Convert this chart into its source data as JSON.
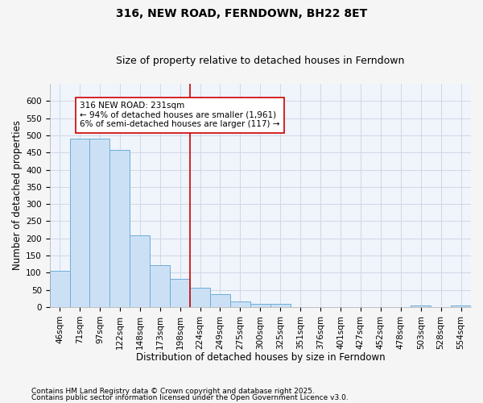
{
  "title": "316, NEW ROAD, FERNDOWN, BH22 8ET",
  "subtitle": "Size of property relative to detached houses in Ferndown",
  "xlabel": "Distribution of detached houses by size in Ferndown",
  "ylabel": "Number of detached properties",
  "footnote1": "Contains HM Land Registry data © Crown copyright and database right 2025.",
  "footnote2": "Contains public sector information licensed under the Open Government Licence v3.0.",
  "annotation_line1": "316 NEW ROAD: 231sqm",
  "annotation_line2": "← 94% of detached houses are smaller (1,961)",
  "annotation_line3": "6% of semi-detached houses are larger (117) →",
  "categories": [
    "46sqm",
    "71sqm",
    "97sqm",
    "122sqm",
    "148sqm",
    "173sqm",
    "198sqm",
    "224sqm",
    "249sqm",
    "275sqm",
    "300sqm",
    "325sqm",
    "351sqm",
    "376sqm",
    "401sqm",
    "427sqm",
    "452sqm",
    "478sqm",
    "503sqm",
    "528sqm",
    "554sqm"
  ],
  "bar_values": [
    105,
    490,
    490,
    458,
    208,
    123,
    83,
    57,
    37,
    16,
    10,
    10,
    0,
    0,
    0,
    0,
    0,
    0,
    5,
    0,
    5
  ],
  "bar_color": "#cce0f5",
  "bar_edge_color": "#6baed6",
  "vline_color": "#cc0000",
  "vline_bin_index": 7,
  "ylim": [
    0,
    650
  ],
  "yticks": [
    0,
    50,
    100,
    150,
    200,
    250,
    300,
    350,
    400,
    450,
    500,
    550,
    600
  ],
  "background_color": "#f5f5f5",
  "plot_background": "#f0f4fb",
  "grid_color": "#d0d8e8",
  "title_fontsize": 10,
  "subtitle_fontsize": 9,
  "axis_label_fontsize": 8.5,
  "tick_fontsize": 7.5,
  "annotation_fontsize": 7.5,
  "footnote_fontsize": 6.5
}
